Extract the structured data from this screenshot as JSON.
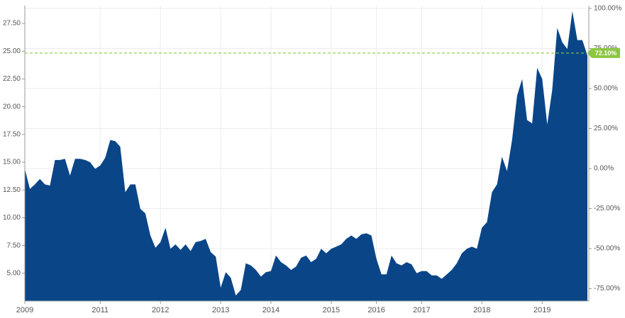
{
  "chart_data": {
    "type": "area",
    "categories": [
      "2009",
      null,
      null,
      null,
      null,
      null,
      null,
      null,
      null,
      null,
      null,
      null,
      null,
      null,
      null,
      "2011",
      null,
      null,
      null,
      null,
      null,
      null,
      null,
      null,
      null,
      null,
      null,
      "2012",
      null,
      null,
      null,
      null,
      null,
      null,
      null,
      null,
      null,
      null,
      null,
      "2013",
      null,
      null,
      null,
      null,
      null,
      null,
      null,
      null,
      null,
      "2014",
      null,
      null,
      null,
      null,
      null,
      null,
      null,
      null,
      null,
      null,
      null,
      "2015",
      null,
      null,
      null,
      null,
      null,
      null,
      null,
      null,
      "2016",
      null,
      null,
      null,
      null,
      null,
      null,
      null,
      null,
      "2017",
      null,
      null,
      null,
      null,
      null,
      null,
      null,
      null,
      null,
      null,
      null,
      "2018",
      null,
      null,
      null,
      null,
      null,
      null,
      null,
      null,
      null,
      null,
      null,
      "2019",
      null,
      null,
      null,
      null,
      null,
      null,
      null,
      null,
      null
    ],
    "values": [
      14.4,
      12.6,
      13.0,
      13.5,
      13.0,
      12.9,
      15.2,
      15.2,
      15.3,
      13.8,
      15.3,
      15.3,
      15.2,
      15.0,
      14.4,
      14.7,
      15.4,
      17.0,
      16.9,
      16.4,
      12.3,
      13.0,
      13.0,
      10.8,
      10.4,
      8.4,
      7.3,
      7.8,
      9.1,
      7.2,
      7.6,
      7.1,
      7.6,
      7.0,
      7.8,
      7.9,
      8.1,
      6.9,
      6.5,
      3.7,
      5.1,
      4.6,
      3.0,
      3.5,
      5.9,
      5.7,
      5.3,
      4.7,
      5.1,
      5.2,
      6.6,
      6.0,
      5.7,
      5.3,
      5.6,
      6.4,
      6.6,
      6.0,
      6.3,
      7.2,
      6.8,
      7.2,
      7.4,
      7.6,
      8.1,
      8.4,
      8.1,
      8.5,
      8.6,
      8.4,
      6.3,
      4.9,
      4.9,
      6.6,
      5.9,
      5.7,
      6.0,
      5.8,
      5.0,
      5.2,
      5.2,
      4.8,
      4.8,
      4.5,
      4.9,
      5.3,
      5.9,
      6.8,
      7.2,
      7.4,
      7.2,
      9.1,
      9.6,
      12.3,
      13.0,
      15.5,
      14.2,
      17.0,
      21.0,
      22.5,
      18.8,
      18.5,
      23.5,
      22.5,
      18.4,
      21.5,
      27.1,
      25.8,
      25.2,
      28.6,
      26.0,
      26.0,
      24.6
    ],
    "color": "#0a4588",
    "ylim": [
      2.5,
      29.1
    ],
    "yticks": [
      {
        "value": 5,
        "label": "5.00"
      },
      {
        "value": 7.5,
        "label": "7.50"
      },
      {
        "value": 10,
        "label": "10.00"
      },
      {
        "value": 12.5,
        "label": "12.50"
      },
      {
        "value": 15,
        "label": "15.00"
      },
      {
        "value": 17.5,
        "label": "17.50"
      },
      {
        "value": 20,
        "label": "20.00"
      },
      {
        "value": 22.5,
        "label": "22.50"
      },
      {
        "value": 25,
        "label": "25.00"
      },
      {
        "value": 27.5,
        "label": "27.50"
      }
    ],
    "y2lim": [
      -82.7,
      101.7
    ],
    "y2ticks": [
      {
        "value": -75,
        "label": "-75.00%"
      },
      {
        "value": -50,
        "label": "-50.00%"
      },
      {
        "value": -25,
        "label": "-25.00%"
      },
      {
        "value": 0,
        "label": "0.00%"
      },
      {
        "value": 25,
        "label": "25.00%"
      },
      {
        "value": 50,
        "label": "50.00%"
      },
      {
        "value": 75,
        "label": "75.00%"
      },
      {
        "value": 100,
        "label": "100.00%"
      }
    ],
    "grid": true,
    "reference_line": {
      "value": 72.1,
      "label": "72.10%",
      "axis": "y2",
      "color": "#8dc63f"
    }
  }
}
